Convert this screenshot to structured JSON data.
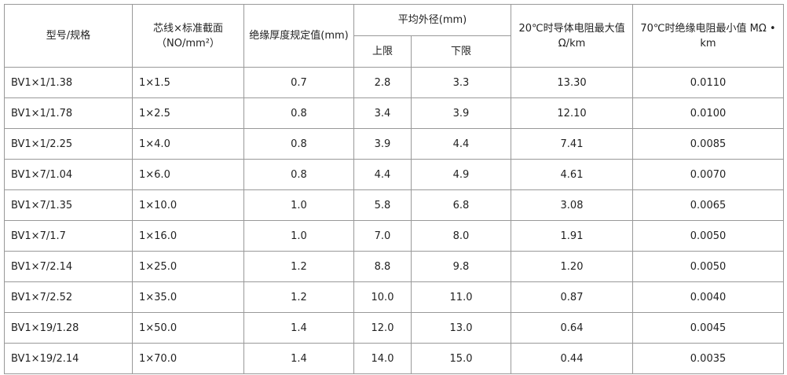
{
  "table": {
    "header": {
      "model": "型号/规格",
      "section": "芯线×标准截面（NO/mm²）",
      "insulation": "绝缘厚度规定值(mm)",
      "avg_diameter": "平均外径(mm)",
      "upper": "上限",
      "lower": "下限",
      "resistance_20": "20℃时导体电阻最大值Ω/km",
      "resistance_70": "70℃时绝缘电阻最小值 MΩ • km"
    },
    "rows": [
      [
        "BV1×1/1.38",
        "1×1.5",
        "0.7",
        "2.8",
        "3.3",
        "13.30",
        "0.0110"
      ],
      [
        "BV1×1/1.78",
        "1×2.5",
        "0.8",
        "3.4",
        "3.9",
        "12.10",
        "0.0100"
      ],
      [
        "BV1×1/2.25",
        "1×4.0",
        "0.8",
        "3.9",
        "4.4",
        "7.41",
        "0.0085"
      ],
      [
        "BV1×7/1.04",
        "1×6.0",
        "0.8",
        "4.4",
        "4.9",
        "4.61",
        "0.0070"
      ],
      [
        "BV1×7/1.35",
        "1×10.0",
        "1.0",
        "5.8",
        "6.8",
        "3.08",
        "0.0065"
      ],
      [
        "BV1×7/1.7",
        "1×16.0",
        "1.0",
        "7.0",
        "8.0",
        "1.91",
        "0.0050"
      ],
      [
        "BV1×7/2.14",
        "1×25.0",
        "1.2",
        "8.8",
        "9.8",
        "1.20",
        "0.0050"
      ],
      [
        "BV1×7/2.52",
        "1×35.0",
        "1.2",
        "10.0",
        "11.0",
        "0.87",
        "0.0040"
      ],
      [
        "BV1×19/1.28",
        "1×50.0",
        "1.4",
        "12.0",
        "13.0",
        "0.64",
        "0.0045"
      ],
      [
        "BV1×19/2.14",
        "1×70.0",
        "1.4",
        "14.0",
        "15.0",
        "0.44",
        "0.0035"
      ]
    ]
  }
}
